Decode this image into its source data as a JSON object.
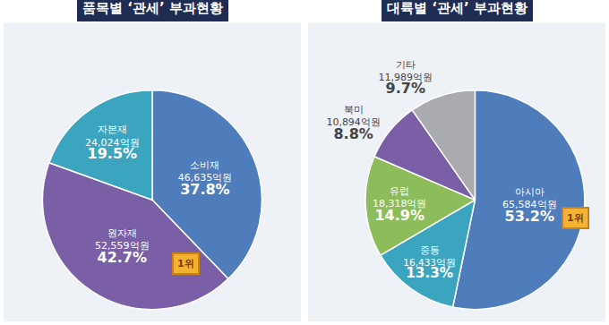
{
  "chart_data": [
    {
      "type": "pie",
      "title": "품목별 ‘관세’ 부과현황",
      "categories": [
        "소비재",
        "원자재",
        "자본재"
      ],
      "values": [
        37.8,
        42.7,
        19.5
      ],
      "value_labels": [
        "37.8%",
        "42.7%",
        "19.5%"
      ],
      "amounts": [
        46635,
        52559,
        24024
      ],
      "amount_labels": [
        "46,635억원",
        "52,559억원",
        "24,024억원"
      ],
      "colors": [
        "#4f7cba",
        "#7a5ea6",
        "#3ba5bf"
      ],
      "data_labels": true,
      "annotations": [
        {
          "category": "원자재",
          "text": "1위"
        }
      ]
    },
    {
      "type": "pie",
      "title": "대륙별 ‘관세’ 부과현황",
      "categories": [
        "아시아",
        "중동",
        "유럽",
        "북미",
        "기타"
      ],
      "values": [
        53.2,
        13.3,
        14.9,
        8.8,
        9.7
      ],
      "value_labels": [
        "53.2%",
        "13.3%",
        "14.9%",
        "8.8%",
        "9.7%"
      ],
      "amounts": [
        65584,
        16433,
        18318,
        10894,
        11989
      ],
      "amount_labels": [
        "65,584억원",
        "16,433억원",
        "18,318억원",
        "10,894억원",
        "11,989억원"
      ],
      "colors": [
        "#4f7cba",
        "#3ba5bf",
        "#8dbd5a",
        "#7a5ea6",
        "#a9abae"
      ],
      "data_labels": true,
      "annotations": [
        {
          "category": "아시아",
          "text": "1위"
        }
      ]
    }
  ]
}
